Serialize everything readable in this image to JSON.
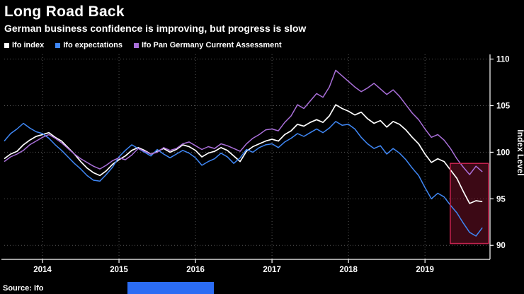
{
  "header": {
    "title": "Long Road Back",
    "subtitle": "German business confidence is improving, but progress is slow"
  },
  "source": "Source: Ifo",
  "colors": {
    "background": "#000000",
    "axis": "#ffffff",
    "grid": "#555555",
    "logo_blue": "#2b6cf4"
  },
  "chart_data": {
    "type": "line",
    "title": "Long Road Back",
    "subtitle": "German business confidence is improving, but progress is slow",
    "ylabel": "Index Level",
    "xlabel": "",
    "frequency": "monthly",
    "x_start_decimal_year": 2013.5,
    "x_step": 0.0833333,
    "xlim": [
      2013.5,
      2019.85
    ],
    "ylim": [
      88.5,
      110.5
    ],
    "yticks": [
      90,
      95,
      100,
      105,
      110
    ],
    "xticks": [
      2014,
      2015,
      2016,
      2017,
      2018,
      2019
    ],
    "xtick_labels": [
      "2014",
      "2015",
      "2016",
      "2017",
      "2018",
      "2019"
    ],
    "grid": "dotted",
    "legend_position": "top-left",
    "series": [
      {
        "name": "Ifo index",
        "color": "#ffffff",
        "values": [
          99.3,
          99.8,
          100.1,
          100.8,
          101.3,
          101.7,
          101.9,
          102.1,
          101.6,
          101.2,
          100.5,
          99.8,
          99.0,
          98.3,
          97.8,
          97.5,
          98.0,
          98.7,
          99.2,
          99.6,
          100.2,
          100.5,
          100.2,
          99.8,
          100.1,
          100.4,
          100.0,
          100.3,
          100.8,
          100.6,
          100.2,
          99.5,
          99.9,
          100.1,
          100.5,
          100.2,
          99.6,
          99.0,
          100.1,
          100.6,
          100.9,
          101.2,
          101.4,
          101.2,
          101.9,
          102.3,
          103.0,
          102.8,
          103.2,
          103.5,
          103.2,
          103.9,
          105.1,
          104.7,
          104.4,
          104.0,
          104.3,
          103.6,
          103.1,
          103.4,
          102.7,
          103.3,
          103.0,
          102.4,
          101.6,
          100.9,
          99.8,
          98.9,
          99.3,
          99.0,
          98.1,
          97.2,
          95.8,
          94.5,
          94.8,
          94.7
        ]
      },
      {
        "name": "Ifo expectations",
        "color": "#3f87f5",
        "values": [
          101.2,
          102.0,
          102.5,
          103.1,
          102.6,
          102.2,
          102.0,
          101.5,
          100.8,
          100.2,
          99.5,
          98.8,
          98.2,
          97.5,
          97.0,
          96.9,
          97.6,
          98.4,
          99.5,
          100.2,
          100.8,
          100.4,
          100.0,
          99.6,
          100.3,
          99.8,
          99.4,
          99.8,
          100.2,
          99.9,
          99.4,
          98.6,
          99.0,
          99.3,
          99.9,
          99.5,
          98.8,
          99.4,
          100.3,
          100.0,
          100.5,
          100.8,
          100.9,
          100.5,
          101.1,
          101.5,
          102.0,
          101.7,
          102.1,
          102.5,
          102.1,
          102.6,
          103.3,
          102.9,
          103.0,
          102.5,
          101.6,
          100.9,
          100.4,
          100.7,
          99.8,
          100.4,
          99.9,
          99.2,
          98.3,
          97.5,
          96.2,
          95.0,
          95.6,
          95.2,
          94.3,
          93.5,
          92.4,
          91.4,
          91.0,
          91.9
        ]
      },
      {
        "name": "Ifo Pan Germany Current Assessment",
        "color": "#a96fd9",
        "values": [
          99.0,
          99.5,
          99.8,
          100.2,
          100.8,
          101.2,
          101.6,
          101.9,
          101.5,
          101.0,
          100.4,
          99.8,
          99.3,
          98.9,
          98.5,
          98.2,
          98.6,
          99.1,
          99.4,
          99.2,
          99.7,
          100.4,
          100.1,
          99.8,
          100.0,
          100.5,
          100.2,
          100.4,
          100.9,
          101.1,
          100.7,
          100.3,
          100.6,
          100.4,
          100.9,
          100.7,
          100.4,
          100.1,
          100.9,
          101.5,
          101.9,
          102.4,
          102.5,
          102.3,
          103.2,
          103.9,
          105.1,
          104.7,
          105.5,
          106.3,
          105.9,
          107.0,
          108.8,
          108.2,
          107.6,
          107.0,
          106.5,
          106.9,
          107.4,
          106.8,
          106.2,
          106.7,
          106.0,
          105.1,
          104.2,
          103.5,
          102.5,
          101.6,
          101.9,
          101.3,
          100.4,
          99.3,
          98.4,
          97.6,
          98.5,
          97.9
        ]
      }
    ],
    "highlight": {
      "x0": 2019.33,
      "x1": 2019.83,
      "y0": 90.2,
      "y1": 98.8,
      "fill": "rgba(200,30,70,0.30)",
      "stroke": "#c2224e"
    }
  }
}
